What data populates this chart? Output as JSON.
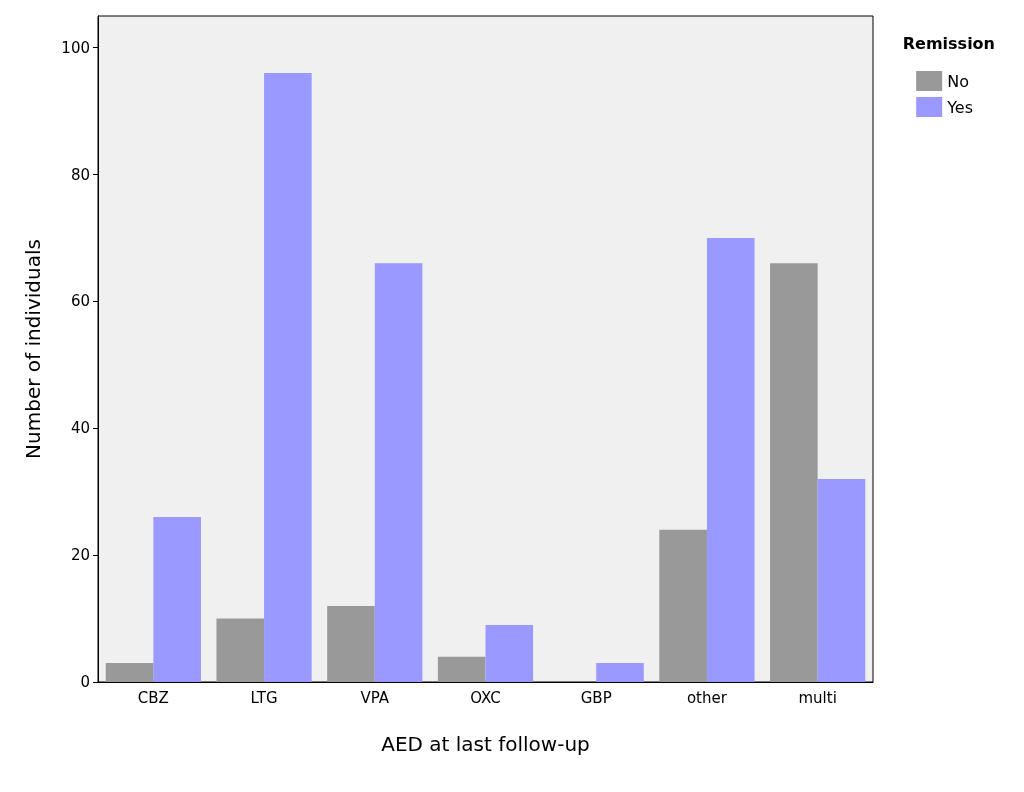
{
  "chart_data": {
    "type": "bar",
    "xlabel": "AED at last follow-up",
    "ylabel": "Number of individuals",
    "legend_title": "Remission",
    "categories": [
      "CBZ",
      "LTG",
      "VPA",
      "OXC",
      "GBP",
      "other",
      "multi"
    ],
    "series": [
      {
        "name": "No",
        "color": "#999999",
        "values": [
          3,
          10,
          12,
          4,
          0,
          24,
          66
        ]
      },
      {
        "name": "Yes",
        "color": "#9999ff",
        "values": [
          26,
          96,
          66,
          9,
          3,
          70,
          32
        ]
      }
    ],
    "ylim": [
      0,
      105
    ],
    "yticks": [
      0,
      20,
      40,
      60,
      80,
      100
    ],
    "grid": false,
    "legend": "top right"
  }
}
